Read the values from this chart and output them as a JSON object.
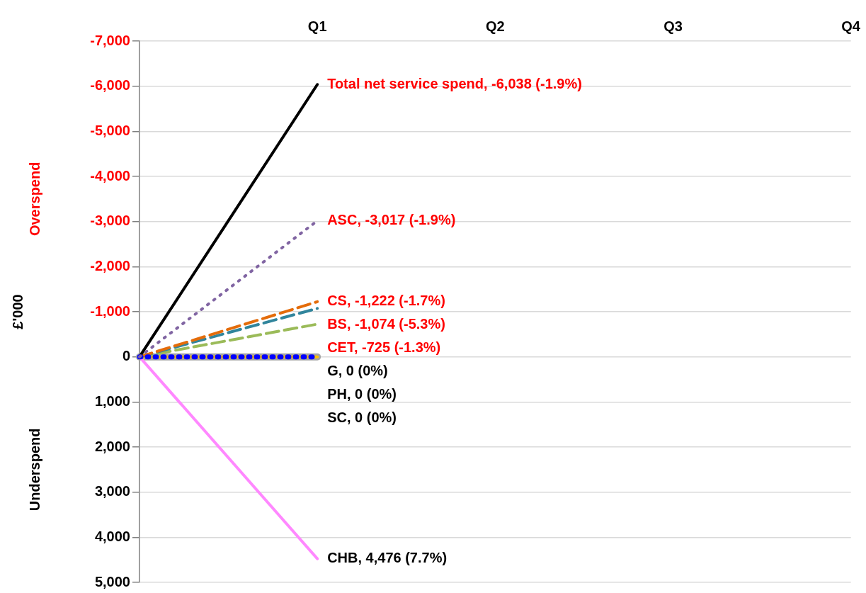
{
  "chart_data": {
    "type": "line",
    "ylabel": "£'000",
    "annotations": [
      "Overspend",
      "Underspend"
    ],
    "categories": [
      null,
      "Q1",
      "Q2",
      "Q3",
      "Q4"
    ],
    "series": [
      {
        "name": "Total net service spend, -6,038 (-1.9%)",
        "color": "#000000",
        "line_style": "solid",
        "values": [
          0,
          -6038,
          null,
          null,
          null
        ]
      },
      {
        "name": "ASC, -3,017 (-1.9%)",
        "color": "#8064a2",
        "line_style": "dotted",
        "values": [
          0,
          -3017,
          null,
          null,
          null
        ]
      },
      {
        "name": "CS, -1,222 (-1.7%)",
        "color": "#e46c0a",
        "line_style": "dashed",
        "values": [
          0,
          -1222,
          null,
          null,
          null
        ]
      },
      {
        "name": "BS, -1,074 (-5.3%)",
        "color": "#31859c",
        "line_style": "dashed",
        "values": [
          0,
          -1074,
          null,
          null,
          null
        ]
      },
      {
        "name": "CET, -725 (-1.3%)",
        "color": "#9bbb59",
        "line_style": "dashed",
        "values": [
          0,
          -725,
          null,
          null,
          null
        ]
      },
      {
        "name": "G, 0 (0%)",
        "color": "#ffc000",
        "line_style": "solid",
        "values": [
          0,
          0,
          null,
          null,
          null
        ]
      },
      {
        "name": "PH, 0 (0%)",
        "color": "#0000ff",
        "line_style": "dotted",
        "values": [
          0,
          0,
          null,
          null,
          null
        ]
      },
      {
        "name": "SC, 0 (0%)",
        "color": "#a5a5a5",
        "line_style": "solid",
        "values": [
          0,
          0,
          null,
          null,
          null
        ]
      },
      {
        "name": "CHB, 4,476 (7.7%)",
        "color": "#ff88ff",
        "line_style": "solid",
        "values": [
          0,
          4476,
          null,
          null,
          null
        ]
      }
    ],
    "ylim": [
      5000,
      -7000
    ],
    "yticks": [
      {
        "value": -7000,
        "label": "-7,000"
      },
      {
        "value": -6000,
        "label": "-6,000"
      },
      {
        "value": -5000,
        "label": "-5,000"
      },
      {
        "value": -4000,
        "label": "-4,000"
      },
      {
        "value": -3000,
        "label": "-3,000"
      },
      {
        "value": -2000,
        "label": "-2,000"
      },
      {
        "value": -1000,
        "label": "-1,000"
      },
      0,
      {
        "value": 1000,
        "label": "1,000"
      },
      {
        "value": 2000,
        "label": "2,000"
      },
      {
        "value": 3000,
        "label": "3,000"
      },
      {
        "value": 4000,
        "label": "4,000"
      },
      {
        "value": 5000,
        "label": "5,000"
      }
    ],
    "grid": "y",
    "legend": false
  }
}
